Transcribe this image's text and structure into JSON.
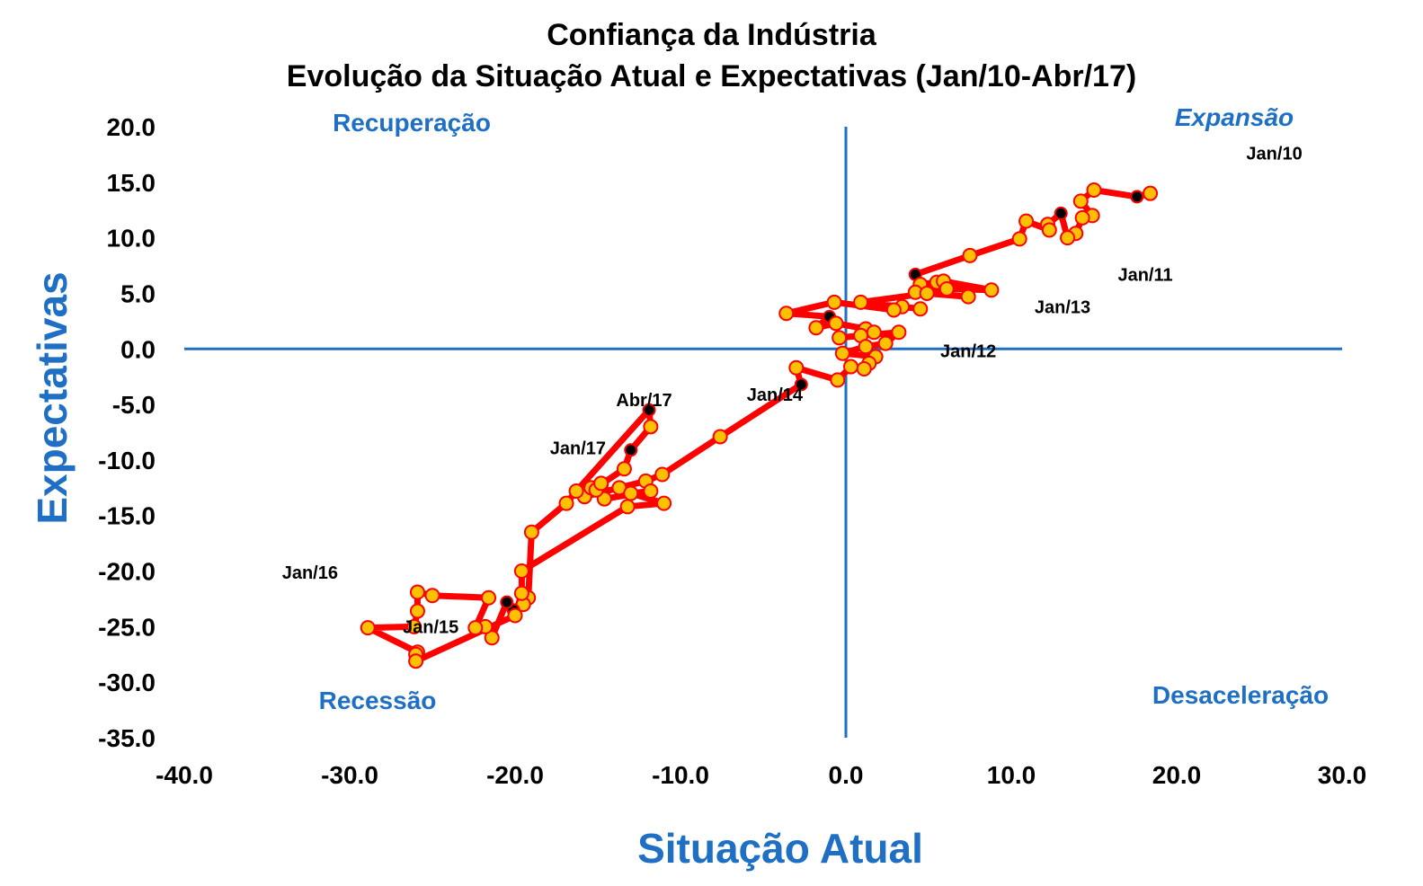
{
  "chart_data": {
    "type": "scatter",
    "title": "Confiança da Indústria",
    "subtitle": "Evolução da Situação Atual e Expectativas (Jan/10-Abr/17)",
    "xlabel": "Situação Atual",
    "ylabel": "Expectativas",
    "xlim": [
      -40,
      30
    ],
    "ylim": [
      -35,
      20
    ],
    "x_ticks": [
      "-40.0",
      "-30.0",
      "-20.0",
      "-10.0",
      "0.0",
      "10.0",
      "20.0",
      "30.0"
    ],
    "y_ticks": [
      "20.0",
      "15.0",
      "10.0",
      "5.0",
      "0.0",
      "-5.0",
      "-10.0",
      "-15.0",
      "-20.0",
      "-25.0",
      "-30.0",
      "-35.0"
    ],
    "quadrants": {
      "top_left": "Recuperação",
      "top_right": "Expansão",
      "bottom_left": "Recessão",
      "bottom_right": "Desaceleração"
    },
    "line_color": "#ff0000",
    "marker_color": "#ffc000",
    "highlight_color": "#000000",
    "axis_color": "#1f6fc4",
    "series": [
      {
        "points": [
          {
            "x": 18.4,
            "y": 14.0
          },
          {
            "x": 17.6,
            "y": 13.7,
            "highlight": true
          },
          {
            "x": 15.0,
            "y": 14.3
          },
          {
            "x": 14.2,
            "y": 13.3
          },
          {
            "x": 14.9,
            "y": 12.0
          },
          {
            "x": 14.3,
            "y": 11.8
          },
          {
            "x": 13.9,
            "y": 10.4
          },
          {
            "x": 13.4,
            "y": 10.0
          },
          {
            "x": 13.0,
            "y": 12.2,
            "highlight": true
          },
          {
            "x": 12.2,
            "y": 11.2
          },
          {
            "x": 12.3,
            "y": 10.7
          },
          {
            "x": 10.9,
            "y": 11.5
          },
          {
            "x": 10.5,
            "y": 9.9
          },
          {
            "x": 7.5,
            "y": 8.4
          },
          {
            "x": 4.2,
            "y": 6.7,
            "highlight": true
          },
          {
            "x": 4.5,
            "y": 5.8
          },
          {
            "x": 5.5,
            "y": 6.0
          },
          {
            "x": 5.9,
            "y": 6.1
          },
          {
            "x": 8.8,
            "y": 5.3
          },
          {
            "x": 6.1,
            "y": 5.4
          },
          {
            "x": 4.2,
            "y": 5.1
          },
          {
            "x": 7.4,
            "y": 4.7
          },
          {
            "x": 4.9,
            "y": 5.0
          },
          {
            "x": 0.9,
            "y": 4.2
          },
          {
            "x": 4.5,
            "y": 3.6
          },
          {
            "x": 3.4,
            "y": 3.8
          },
          {
            "x": 2.9,
            "y": 3.5
          },
          {
            "x": -0.7,
            "y": 4.2
          },
          {
            "x": -3.6,
            "y": 3.2
          },
          {
            "x": -1.0,
            "y": 2.9,
            "highlight": true
          },
          {
            "x": -1.8,
            "y": 1.9
          },
          {
            "x": -0.6,
            "y": 2.3
          },
          {
            "x": 1.2,
            "y": 1.8
          },
          {
            "x": 1.7,
            "y": 1.5
          },
          {
            "x": 0.9,
            "y": 1.2
          },
          {
            "x": -0.4,
            "y": 1.0
          },
          {
            "x": 3.2,
            "y": 1.5
          },
          {
            "x": 2.4,
            "y": 0.5
          },
          {
            "x": 1.2,
            "y": 0.2
          },
          {
            "x": -0.2,
            "y": -0.4
          },
          {
            "x": 1.8,
            "y": -0.7
          },
          {
            "x": 1.4,
            "y": -1.3
          },
          {
            "x": 1.1,
            "y": -1.8
          },
          {
            "x": 0.3,
            "y": -1.6
          },
          {
            "x": -0.5,
            "y": -2.8
          },
          {
            "x": -3.0,
            "y": -1.7
          },
          {
            "x": -2.7,
            "y": -3.2,
            "highlight": true
          },
          {
            "x": -7.6,
            "y": -7.9
          },
          {
            "x": -11.1,
            "y": -11.3
          },
          {
            "x": -12.1,
            "y": -11.9
          },
          {
            "x": -13.7,
            "y": -12.5
          },
          {
            "x": -15.8,
            "y": -13.3
          },
          {
            "x": -15.4,
            "y": -12.5
          },
          {
            "x": -14.8,
            "y": -12.2
          },
          {
            "x": -13.4,
            "y": -10.8
          },
          {
            "x": -13.0,
            "y": -9.1,
            "highlight": true
          },
          {
            "x": -11.8,
            "y": -7.0
          },
          {
            "x": -11.9,
            "y": -5.5,
            "highlight": true
          },
          {
            "x": -16.3,
            "y": -12.8
          },
          {
            "x": -16.9,
            "y": -13.9
          },
          {
            "x": -19.0,
            "y": -16.5
          },
          {
            "x": -19.2,
            "y": -22.4
          },
          {
            "x": -19.5,
            "y": -23.0
          },
          {
            "x": -20.1,
            "y": -23.5,
            "highlight": true
          },
          {
            "x": -20.5,
            "y": -22.8,
            "highlight": true
          },
          {
            "x": -21.4,
            "y": -26.0
          },
          {
            "x": -21.8,
            "y": -25.0
          },
          {
            "x": -22.4,
            "y": -25.1
          },
          {
            "x": -21.6,
            "y": -22.4
          },
          {
            "x": -25.0,
            "y": -22.2
          },
          {
            "x": -25.9,
            "y": -21.9
          },
          {
            "x": -25.9,
            "y": -23.6
          },
          {
            "x": -26.1,
            "y": -25.0
          },
          {
            "x": -28.9,
            "y": -25.1
          },
          {
            "x": -25.9,
            "y": -27.3
          },
          {
            "x": -26.0,
            "y": -27.5
          },
          {
            "x": -26.0,
            "y": -28.1
          },
          {
            "x": -20.0,
            "y": -24.0
          },
          {
            "x": -19.6,
            "y": -22.0
          },
          {
            "x": -19.6,
            "y": -20.0
          },
          {
            "x": -13.2,
            "y": -14.2
          },
          {
            "x": -11.0,
            "y": -13.9
          },
          {
            "x": -13.0,
            "y": -13.0
          },
          {
            "x": -11.8,
            "y": -12.8
          },
          {
            "x": -14.6,
            "y": -13.5
          },
          {
            "x": -15.1,
            "y": -12.7
          },
          {
            "x": -14.8,
            "y": -12.1
          }
        ]
      }
    ],
    "annotations": [
      {
        "text": "Jan/10",
        "x": 25.9,
        "y": 17.6
      },
      {
        "text": "Jan/11",
        "x": 18.1,
        "y": 6.7
      },
      {
        "text": "Jan/13",
        "x": 13.1,
        "y": 3.8
      },
      {
        "text": "Jan/12",
        "x": 7.4,
        "y": -0.2
      },
      {
        "text": "Jan/14",
        "x": -4.3,
        "y": -4.1
      },
      {
        "text": "Abr/17",
        "x": -12.2,
        "y": -4.6
      },
      {
        "text": "Jan/17",
        "x": -16.2,
        "y": -8.9
      },
      {
        "text": "Jan/16",
        "x": -32.4,
        "y": -20.1
      },
      {
        "text": "Jan/15",
        "x": -25.1,
        "y": -25.0
      }
    ]
  }
}
